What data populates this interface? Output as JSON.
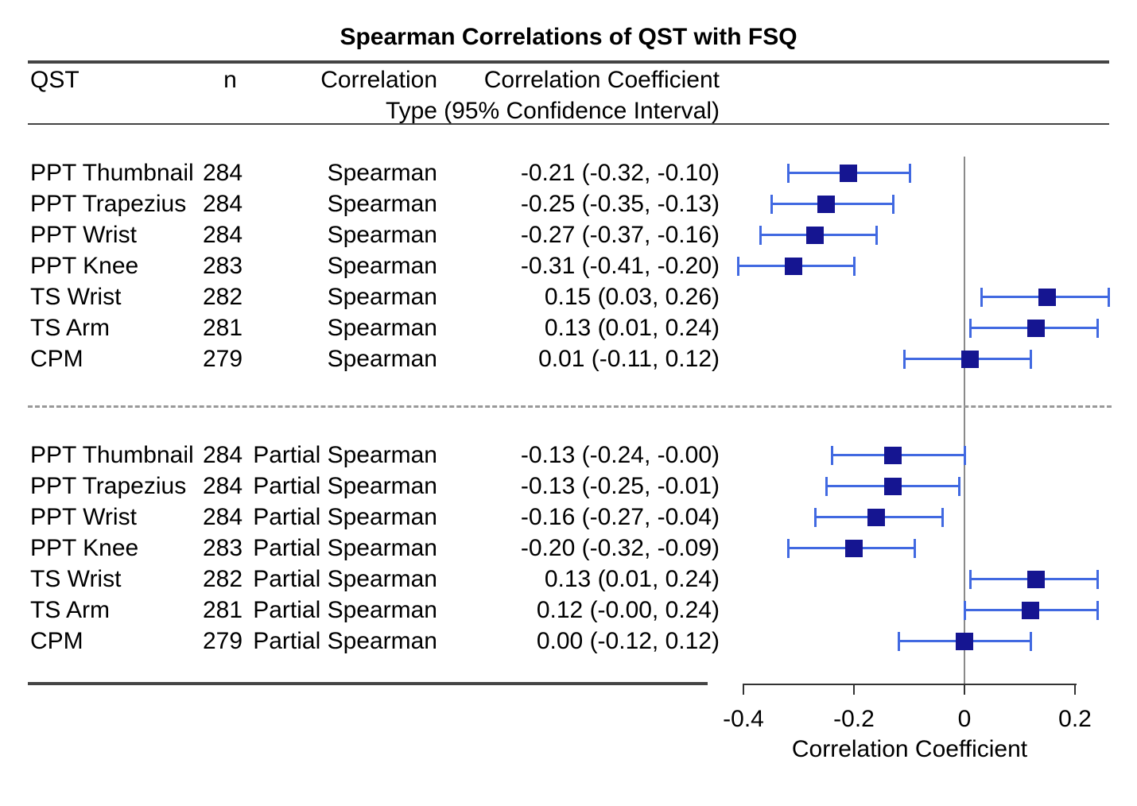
{
  "title": "Spearman Correlations of QST with FSQ",
  "table_header": {
    "qst": "QST",
    "n": "n",
    "type_line1": "Correlation",
    "type_line2": "Type",
    "ci_line1": "Correlation Coefficient",
    "ci_line2": "(95% Confidence Interval)"
  },
  "chart_data": {
    "type": "forest",
    "title": "Spearman Correlations of QST with FSQ",
    "xlabel": "Correlation Coefficient",
    "xlim": [
      -0.4,
      0.26
    ],
    "x_ticks": [
      -0.4,
      -0.2,
      0,
      0.2
    ],
    "x_tick_labels": [
      "-0.4",
      "-0.2",
      "0",
      "0.2"
    ],
    "reference_line": 0,
    "grid": false,
    "marker_shape": "square",
    "colors": {
      "marker": "#151591",
      "error_bar": "#4169e1",
      "reference_line": "#8a8a8a",
      "axis": "#333333",
      "rule": "#444444",
      "dashed_divider": "#999999"
    },
    "groups": [
      {
        "name": "Spearman",
        "rows": [
          {
            "qst": "PPT Thumbnail",
            "n": "284",
            "type": "Spearman",
            "ci_text": "-0.21 (-0.32, -0.10)",
            "est": -0.21,
            "lo": -0.32,
            "hi": -0.1
          },
          {
            "qst": "PPT Trapezius",
            "n": "284",
            "type": "Spearman",
            "ci_text": "-0.25 (-0.35, -0.13)",
            "est": -0.25,
            "lo": -0.35,
            "hi": -0.13
          },
          {
            "qst": "PPT Wrist",
            "n": "284",
            "type": "Spearman",
            "ci_text": "-0.27 (-0.37, -0.16)",
            "est": -0.27,
            "lo": -0.37,
            "hi": -0.16
          },
          {
            "qst": "PPT Knee",
            "n": "283",
            "type": "Spearman",
            "ci_text": "-0.31 (-0.41, -0.20)",
            "est": -0.31,
            "lo": -0.41,
            "hi": -0.2
          },
          {
            "qst": "TS Wrist",
            "n": "282",
            "type": "Spearman",
            "ci_text": "0.15 (0.03, 0.26)",
            "est": 0.15,
            "lo": 0.03,
            "hi": 0.26
          },
          {
            "qst": "TS Arm",
            "n": "281",
            "type": "Spearman",
            "ci_text": "0.13 (0.01, 0.24)",
            "est": 0.13,
            "lo": 0.01,
            "hi": 0.24
          },
          {
            "qst": "CPM",
            "n": "279",
            "type": "Spearman",
            "ci_text": "0.01 (-0.11, 0.12)",
            "est": 0.01,
            "lo": -0.11,
            "hi": 0.12
          }
        ]
      },
      {
        "name": "Partial Spearman",
        "rows": [
          {
            "qst": "PPT Thumbnail",
            "n": "284",
            "type": "Partial Spearman",
            "ci_text": "-0.13 (-0.24, -0.00)",
            "est": -0.13,
            "lo": -0.24,
            "hi": 0.0
          },
          {
            "qst": "PPT Trapezius",
            "n": "284",
            "type": "Partial Spearman",
            "ci_text": "-0.13 (-0.25, -0.01)",
            "est": -0.13,
            "lo": -0.25,
            "hi": -0.01
          },
          {
            "qst": "PPT Wrist",
            "n": "284",
            "type": "Partial Spearman",
            "ci_text": "-0.16 (-0.27, -0.04)",
            "est": -0.16,
            "lo": -0.27,
            "hi": -0.04
          },
          {
            "qst": "PPT Knee",
            "n": "283",
            "type": "Partial Spearman",
            "ci_text": "-0.20 (-0.32, -0.09)",
            "est": -0.2,
            "lo": -0.32,
            "hi": -0.09
          },
          {
            "qst": "TS Wrist",
            "n": "282",
            "type": "Partial Spearman",
            "ci_text": "0.13 (0.01, 0.24)",
            "est": 0.13,
            "lo": 0.01,
            "hi": 0.24
          },
          {
            "qst": "TS Arm",
            "n": "281",
            "type": "Partial Spearman",
            "ci_text": "0.12 (-0.00, 0.24)",
            "est": 0.12,
            "lo": 0.0,
            "hi": 0.24
          },
          {
            "qst": "CPM",
            "n": "279",
            "type": "Partial Spearman",
            "ci_text": "0.00 (-0.12, 0.12)",
            "est": 0.0,
            "lo": -0.12,
            "hi": 0.12
          }
        ]
      }
    ]
  }
}
